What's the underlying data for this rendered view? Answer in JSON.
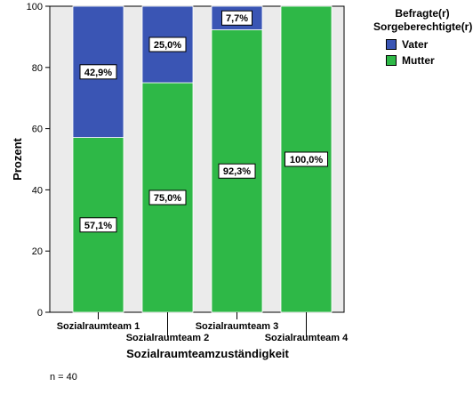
{
  "chart_data": {
    "type": "bar",
    "stacked": true,
    "categories": [
      "Sozialraumteam 1",
      "Sozialraumteam 2",
      "Sozialraumteam 3",
      "Sozialraumteam 4"
    ],
    "series": [
      {
        "name": "Mutter",
        "color": "#2eb847",
        "values": [
          57.1,
          75.0,
          92.3,
          100.0
        ],
        "labels": [
          "57,1%",
          "75,0%",
          "92,3%",
          "100,0%"
        ]
      },
      {
        "name": "Vater",
        "color": "#3a55b4",
        "values": [
          42.9,
          25.0,
          7.7,
          0
        ],
        "labels": [
          "42,9%",
          "25,0%",
          "7,7%",
          ""
        ]
      }
    ],
    "xlabel": "Sozialraumteamzuständigkeit",
    "ylabel": "Prozent",
    "ylim": [
      0,
      100
    ],
    "yticks": [
      0,
      20,
      40,
      60,
      80,
      100
    ],
    "legend_title": "Befragte(r) Sorgeberechtigte(r)",
    "legend_position": "top-right",
    "plot_background": "#ebebeb"
  },
  "legend": {
    "title_line1": "Befragte(r)",
    "title_line2": "Sorgeberechtigte(r)",
    "items": [
      {
        "label": "Vater",
        "color": "#3a55b4"
      },
      {
        "label": "Mutter",
        "color": "#2eb847"
      }
    ]
  },
  "note": "n = 40"
}
